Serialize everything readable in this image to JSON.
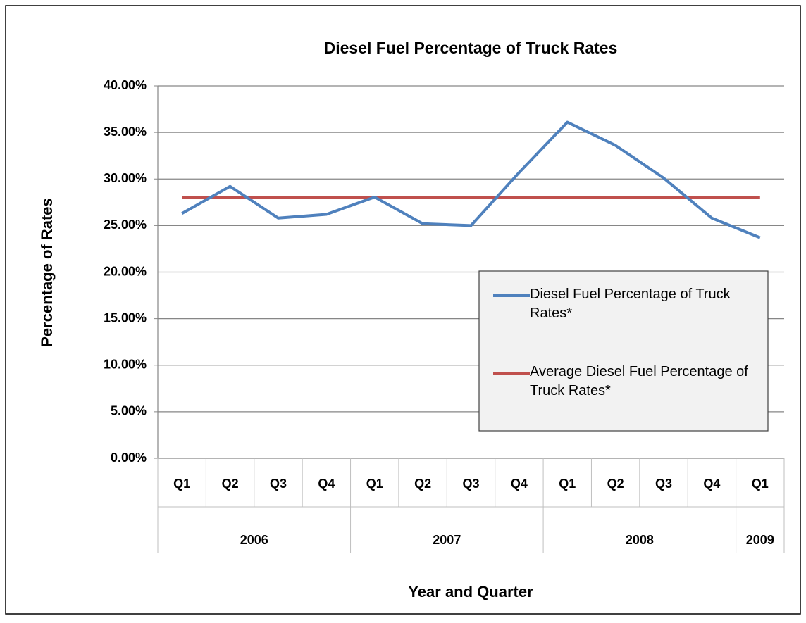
{
  "chart_data": {
    "type": "line",
    "title": "Diesel Fuel Percentage of Truck Rates",
    "x_label": "Year and Quarter",
    "y_label": "Percentage of Rates",
    "categories": [
      "Q1",
      "Q2",
      "Q3",
      "Q4",
      "Q1",
      "Q2",
      "Q3",
      "Q4",
      "Q1",
      "Q2",
      "Q3",
      "Q4",
      "Q1"
    ],
    "category_groups": [
      {
        "label": "2006",
        "count": 4
      },
      {
        "label": "2007",
        "count": 4
      },
      {
        "label": "2008",
        "count": 4
      },
      {
        "label": "2009",
        "count": 1
      }
    ],
    "series": [
      {
        "name": "Diesel Fuel Percentage of Truck Rates*",
        "color": "#4f81bd",
        "values": [
          26.3,
          29.2,
          25.8,
          26.2,
          28.05,
          25.2,
          25.0,
          30.7,
          36.1,
          33.6,
          30.1,
          25.8,
          23.7
        ]
      },
      {
        "name": "Average Diesel Fuel Percentage of Truck Rates*",
        "color": "#c0504d",
        "values": [
          28.05,
          28.05,
          28.05,
          28.05,
          28.05,
          28.05,
          28.05,
          28.05,
          28.05,
          28.05,
          28.05,
          28.05,
          28.05
        ]
      }
    ],
    "ylim": [
      0,
      40
    ],
    "yticks": [
      {
        "value": 0,
        "label": "0.00%"
      },
      {
        "value": 5,
        "label": "5.00%"
      },
      {
        "value": 10,
        "label": "10.00%"
      },
      {
        "value": 15,
        "label": "15.00%"
      },
      {
        "value": 20,
        "label": "20.00%"
      },
      {
        "value": 25,
        "label": "25.00%"
      },
      {
        "value": 30,
        "label": "30.00%"
      },
      {
        "value": 35,
        "label": "35.00%"
      },
      {
        "value": 40,
        "label": "40.00%"
      }
    ],
    "grid": true,
    "legend": "right"
  }
}
